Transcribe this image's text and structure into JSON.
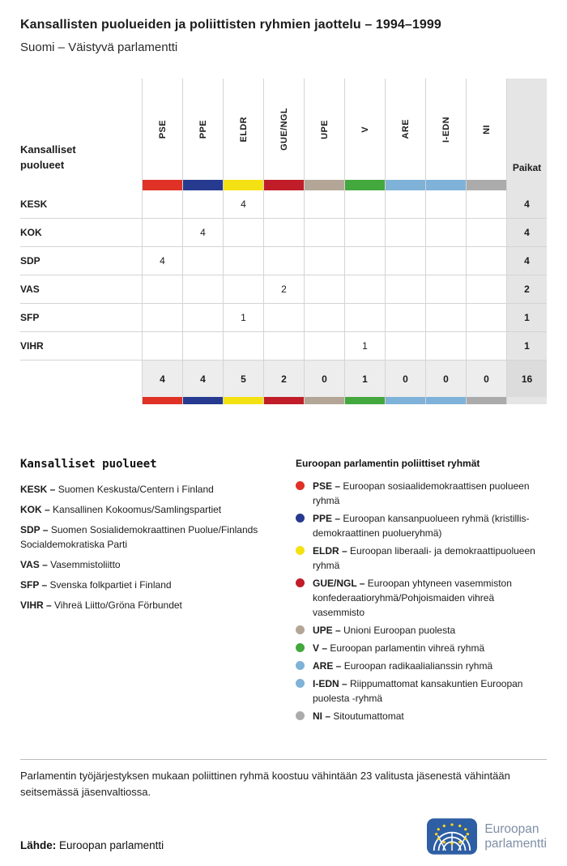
{
  "header": {
    "title": "Kansallisten puolueiden ja poliittisten ryhmien jaottelu – 1994–1999",
    "subtitle": "Suomi – Väistyvä parlamentti"
  },
  "chart_data": {
    "type": "table",
    "title": "Kansallisten puolueiden ja poliittisten ryhmien jaottelu – 1994–1999",
    "subtitle": "Suomi – Väistyvä parlamentti",
    "row_header": "Kansalliset puolueet",
    "seats_header": "Paikat",
    "columns": [
      "PSE",
      "PPE",
      "ELDR",
      "GUE/NGL",
      "UPE",
      "V",
      "ARE",
      "I-EDN",
      "NI"
    ],
    "column_colors": [
      "#e03127",
      "#263a8f",
      "#f3e113",
      "#c01d28",
      "#b3a696",
      "#43a83d",
      "#7fb2d8",
      "#7fb2d8",
      "#ababab"
    ],
    "rows": [
      {
        "party": "KESK",
        "values": [
          null,
          null,
          4,
          null,
          null,
          null,
          null,
          null,
          null
        ],
        "seats": 4
      },
      {
        "party": "KOK",
        "values": [
          null,
          4,
          null,
          null,
          null,
          null,
          null,
          null,
          null
        ],
        "seats": 4
      },
      {
        "party": "SDP",
        "values": [
          4,
          null,
          null,
          null,
          null,
          null,
          null,
          null,
          null
        ],
        "seats": 4
      },
      {
        "party": "VAS",
        "values": [
          null,
          null,
          null,
          2,
          null,
          null,
          null,
          null,
          null
        ],
        "seats": 2
      },
      {
        "party": "SFP",
        "values": [
          null,
          null,
          1,
          null,
          null,
          null,
          null,
          null,
          null
        ],
        "seats": 1
      },
      {
        "party": "VIHR",
        "values": [
          null,
          null,
          null,
          null,
          null,
          1,
          null,
          null,
          null
        ],
        "seats": 1
      }
    ],
    "totals": {
      "values": [
        4,
        4,
        5,
        2,
        0,
        1,
        0,
        0,
        0
      ],
      "seats": 16
    }
  },
  "legend_parties": {
    "title": "Kansalliset puolueet",
    "items": [
      {
        "code": "KESK",
        "name": "Suomen Keskusta/Centern i Finland"
      },
      {
        "code": "KOK",
        "name": "Kansallinen Kokoomus/Samlingspartiet"
      },
      {
        "code": "SDP",
        "name": "Suomen Sosialidemokraattinen Puolue/Finlands Socialdemokratiska Parti"
      },
      {
        "code": "VAS",
        "name": "Vasemmistoliitto"
      },
      {
        "code": "SFP",
        "name": "Svenska folkpartiet i Finland"
      },
      {
        "code": "VIHR",
        "name": "Vihreä Liitto/Gröna Förbundet"
      }
    ]
  },
  "legend_groups": {
    "title": "Euroopan parlamentin poliittiset ryhmät",
    "items": [
      {
        "code": "PSE",
        "color": "#e03127",
        "name": "Euroopan sosiaalidemokraattisen puolueen ryhmä"
      },
      {
        "code": "PPE",
        "color": "#263a8f",
        "name": "Euroopan kansanpuolueen ryhmä (kristillis-demokraattinen puolueryhmä)"
      },
      {
        "code": "ELDR",
        "color": "#f3e113",
        "name": "Euroopan liberaali- ja demokraattipuolueen ryhmä"
      },
      {
        "code": "GUE/NGL",
        "color": "#c01d28",
        "name": "Euroopan yhtyneen vasemmiston konfederaatioryhmä/Pohjoismaiden vihreä vasemmisto"
      },
      {
        "code": "UPE",
        "color": "#b3a696",
        "name": "Unioni Euroopan puolesta"
      },
      {
        "code": "V",
        "color": "#43a83d",
        "name": "Euroopan parlamentin vihreä ryhmä"
      },
      {
        "code": "ARE",
        "color": "#7fb2d8",
        "name": "Euroopan radikaalialianssin ryhmä"
      },
      {
        "code": "I-EDN",
        "color": "#7fb2d8",
        "name": "Riippumattomat kansakuntien Euroopan puolesta -ryhmä"
      },
      {
        "code": "NI",
        "color": "#ababab",
        "name": "Sitoutumattomat"
      }
    ]
  },
  "footnote": "Parlamentin työjärjestyksen mukaan poliittinen ryhmä koostuu vähintään 23 valitusta jäsenestä vähintään seitsemässä jäsenvaltiossa.",
  "source": {
    "label": "Lähde:",
    "text": "Euroopan parlamentti"
  },
  "logo": {
    "line1": "Euroopan",
    "line2": "parlamentti"
  }
}
